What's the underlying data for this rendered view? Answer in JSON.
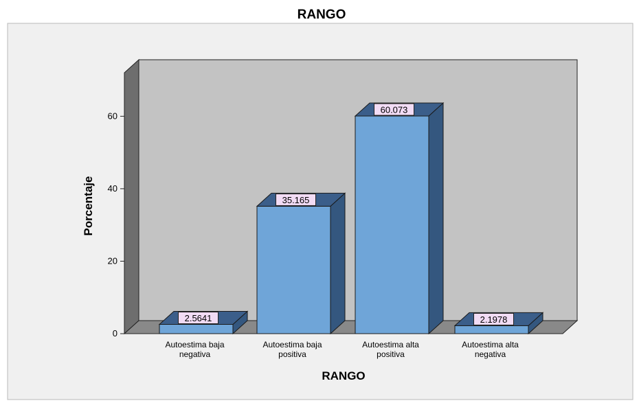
{
  "chart_data": {
    "type": "bar",
    "title": "RANGO",
    "xlabel": "RANGO",
    "ylabel": "Porcentaje",
    "ylim": [
      0,
      72
    ],
    "yticks": [
      0,
      20,
      40,
      60
    ],
    "categories": [
      [
        "Autoestima baja",
        "negativa"
      ],
      [
        "Autoestima baja",
        "positiva"
      ],
      [
        "Autoestima alta",
        "positiva"
      ],
      [
        "Autoestima alta",
        "negativa"
      ]
    ],
    "values": [
      2.5641,
      35.165,
      60.073,
      2.1978
    ],
    "data_labels": [
      "2.5641",
      "35.165",
      "60.073",
      "2.1978"
    ],
    "grid": false,
    "colors": {
      "bar_front": "#6fa5d8",
      "bar_top": "#3b5e8a",
      "bar_side": "#34577f",
      "bar_outline": "#1a1a1a",
      "label_bg": "#f2dcf5",
      "plot_back": "#c3c3c3",
      "plot_side": "#6e6e6e",
      "plot_floor": "#898989",
      "outer_bg": "#f0f0f0"
    }
  }
}
